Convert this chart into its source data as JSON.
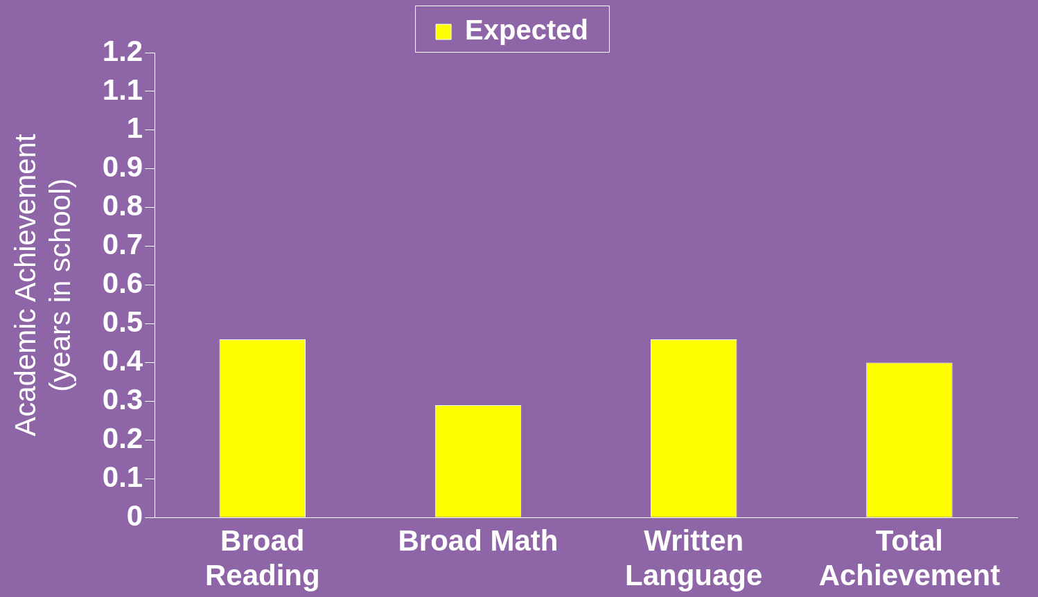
{
  "chart_data": {
    "type": "bar",
    "ylabel": "Academic Achievement\n(years in school)",
    "categories": [
      "Broad Reading",
      "Broad Math",
      "Written Language",
      "Total Achievement"
    ],
    "series": [
      {
        "name": "Expected",
        "color": "#ffff00",
        "values": [
          0.46,
          0.29,
          0.46,
          0.4
        ]
      }
    ],
    "ylim": [
      0,
      1.2
    ],
    "yticks": [
      0,
      0.1,
      0.2,
      0.3,
      0.4,
      0.5,
      0.6,
      0.7,
      0.8,
      0.9,
      1,
      1.1,
      1.2
    ],
    "legend": "top"
  }
}
